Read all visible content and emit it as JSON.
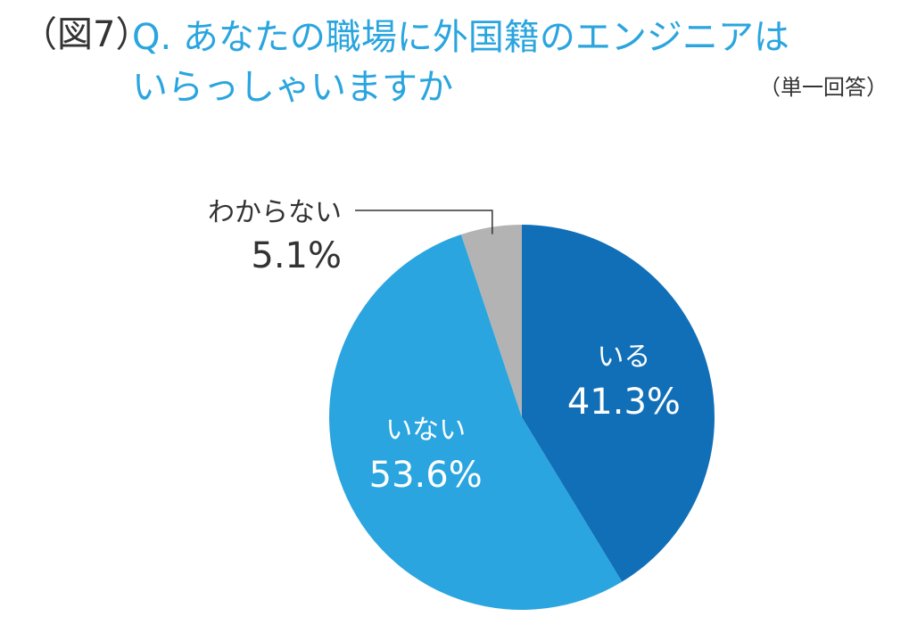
{
  "header": {
    "figure_label": "（図7）",
    "question_line1": "Q. あなたの職場に外国籍のエンジニアは",
    "question_line2": "いらっしゃいますか",
    "answer_type": "（単一回答）"
  },
  "colors": {
    "title": "#2aa5df",
    "text": "#333333",
    "leader": "#333333"
  },
  "chart_data": {
    "type": "pie",
    "start_angle_deg": 0,
    "direction": "clockwise",
    "slices": [
      {
        "label": "いる",
        "value": 41.3,
        "display": "41.3%",
        "color": "#116fb8",
        "text_color": "#ffffff"
      },
      {
        "label": "いない",
        "value": 53.6,
        "display": "53.6%",
        "color": "#2aa5df",
        "text_color": "#ffffff"
      },
      {
        "label": "わからない",
        "value": 5.1,
        "display": "5.1%",
        "color": "#b3b3b3",
        "text_color": "#333333",
        "label_outside": true
      }
    ]
  }
}
